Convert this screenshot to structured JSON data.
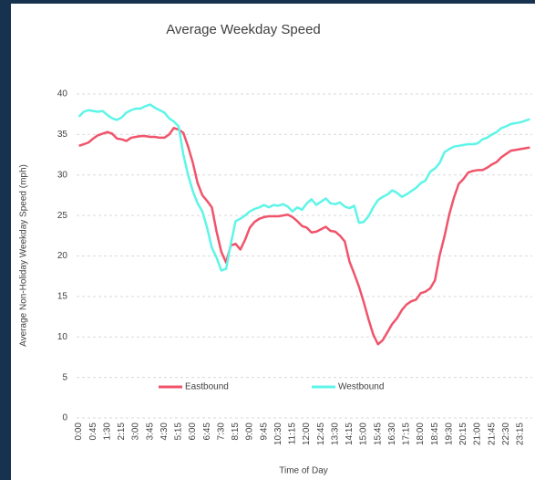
{
  "chart_data": {
    "type": "line",
    "title": "Average Weekday Speed",
    "x_label": "Time of Day",
    "y_label": "Average Non-Holiday Weekday Speed (mph)",
    "categories": [
      "0:00",
      null,
      null,
      "0:45",
      null,
      null,
      "1:30",
      null,
      null,
      "2:15",
      null,
      null,
      "3:00",
      null,
      null,
      "3:45",
      null,
      null,
      "4:30",
      null,
      null,
      "5:15",
      null,
      null,
      "6:00",
      null,
      null,
      "6:45",
      null,
      null,
      "7:30",
      null,
      null,
      "8:15",
      null,
      null,
      "9:00",
      null,
      null,
      "9:45",
      null,
      null,
      "10:30",
      null,
      null,
      "11:15",
      null,
      null,
      "12:00",
      null,
      null,
      "12:45",
      null,
      null,
      "13:30",
      null,
      null,
      "14:15",
      null,
      null,
      "15:00",
      null,
      null,
      "15:45",
      null,
      null,
      "16:30",
      null,
      null,
      "17:15",
      null,
      null,
      "18:00",
      null,
      null,
      "18:45",
      null,
      null,
      "19:30",
      null,
      null,
      "20:15",
      null,
      null,
      "21:00",
      null,
      null,
      "21:45",
      null,
      null,
      "22:30",
      null,
      null,
      "23:15",
      null,
      null
    ],
    "series": [
      {
        "name": "Eastbound",
        "color": "#f0546b",
        "values": [
          33.6,
          33.8,
          34.0,
          34.5,
          34.9,
          35.1,
          35.3,
          35.1,
          34.5,
          34.4,
          34.2,
          34.6,
          34.7,
          34.8,
          34.8,
          34.7,
          34.7,
          34.6,
          34.6,
          35.0,
          35.8,
          35.6,
          35.2,
          33.5,
          31.5,
          29,
          27.5,
          26.8,
          26,
          23,
          20.5,
          19.2,
          21.3,
          21.5,
          20.8,
          22,
          23.5,
          24.2,
          24.6,
          24.8,
          24.9,
          24.9,
          24.9,
          25,
          25.1,
          24.8,
          24.3,
          23.7,
          23.5,
          22.9,
          23.0,
          23.3,
          23.6,
          23.1,
          23.0,
          22.5,
          21.8,
          19.3,
          17.8,
          16.2,
          14.3,
          12.2,
          10.3,
          9.1,
          9.6,
          10.6,
          11.6,
          12.3,
          13.3,
          14.0,
          14.4,
          14.6,
          15.4,
          15.6,
          16.0,
          17.0,
          20.1,
          22.4,
          25.1,
          27.2,
          28.9,
          29.5,
          30.3,
          30.5,
          30.6,
          30.6,
          30.9,
          31.3,
          31.6,
          32.2,
          32.6,
          33.0,
          33.1,
          33.2,
          33.3,
          33.4
        ]
      },
      {
        "name": "Westbound",
        "color": "#5ef5e8",
        "values": [
          37.2,
          37.8,
          38.0,
          37.9,
          37.8,
          37.9,
          37.4,
          37.0,
          36.8,
          37.1,
          37.7,
          38.0,
          38.2,
          38.2,
          38.5,
          38.7,
          38.3,
          38.0,
          37.7,
          37.0,
          36.6,
          36.0,
          32.5,
          30.0,
          28.0,
          26.5,
          25.5,
          23.5,
          21.0,
          19.8,
          18.2,
          18.4,
          21.5,
          24.3,
          24.6,
          25.0,
          25.5,
          25.8,
          26.0,
          26.3,
          26.0,
          26.3,
          26.2,
          26.4,
          26.1,
          25.5,
          26.0,
          25.7,
          26.5,
          27.0,
          26.3,
          26.7,
          27.1,
          26.5,
          26.4,
          26.6,
          26.1,
          25.9,
          26.2,
          24.1,
          24.2,
          24.9,
          26.0,
          26.9,
          27.3,
          27.6,
          28.1,
          27.8,
          27.3,
          27.6,
          28.0,
          28.4,
          29.0,
          29.3,
          30.4,
          30.8,
          31.5,
          32.8,
          33.2,
          33.5,
          33.6,
          33.7,
          33.8,
          33.8,
          33.9,
          34.4,
          34.6,
          35.0,
          35.3,
          35.8,
          36.0,
          36.3,
          36.4,
          36.5,
          36.7,
          36.9
        ]
      }
    ],
    "ylim": [
      0,
      40
    ],
    "yticks": [
      0,
      5,
      10,
      15,
      20,
      25,
      30,
      35,
      40
    ],
    "grid": true,
    "legend": "bottom"
  }
}
